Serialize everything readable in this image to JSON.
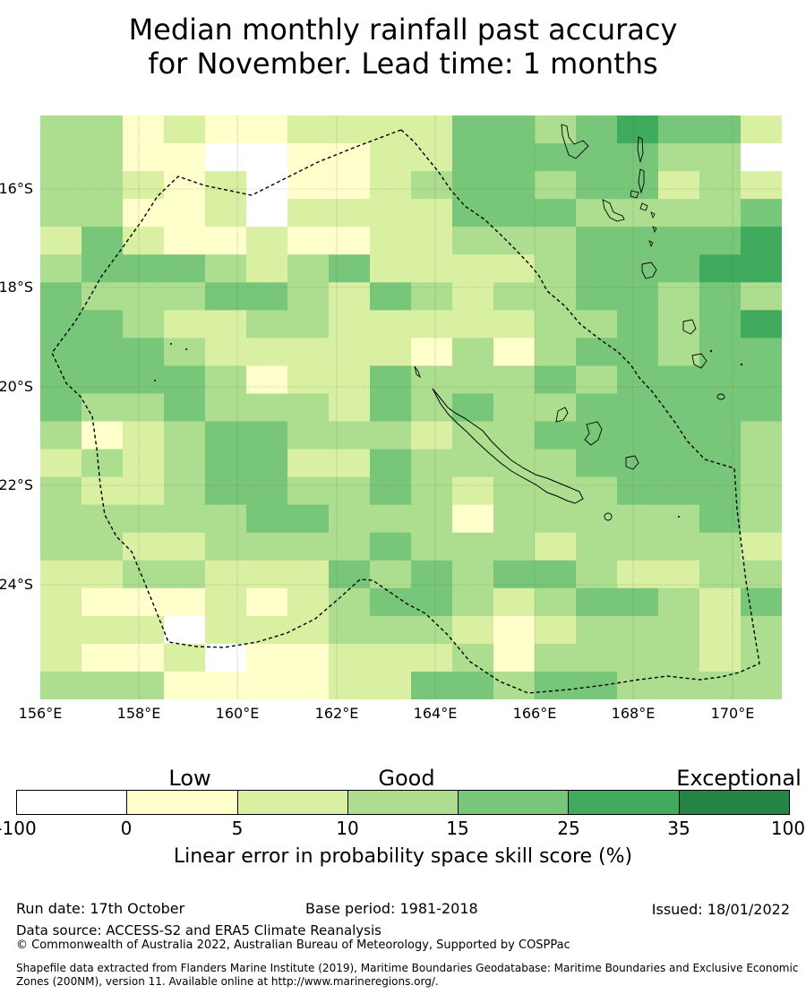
{
  "title": {
    "line1": "Median monthly rainfall past accuracy",
    "line2": "for November. Lead time: 1 months"
  },
  "map": {
    "lat_labels": [
      "16°S",
      "18°S",
      "20°S",
      "22°S",
      "24°S"
    ],
    "lon_labels": [
      "156°E",
      "158°E",
      "160°E",
      "162°E",
      "164°E",
      "166°E",
      "168°E",
      "170°E"
    ],
    "grid_cols": 18,
    "grid_rows": 21,
    "skill_classes": [
      "10-15 10-15 0-5 5-10 0-5 0-5 5-10 5-10 5-10 5-10 15-25 15-25 10-15 15-25 25-35 15-25 15-25 5-10",
      "10-15 10-15 0-5 0-5 -100-0 -100-0 0-5 0-5 5-10 5-10 15-25 15-25 15-25 15-25 15-25 10-15 10-15 -100-0",
      "10-15 10-15 5-10 0-5 5-10 -100-0 0-5 0-5 5-10 10-15 15-25 15-25 10-15 15-25 15-25 5-10 10-15 5-10",
      "10-15 10-15 0-5 0-5 5-10 -100-0 5-10 5-10 5-10 5-10 15-25 15-25 15-25 10-15 10-15 10-15 10-15 15-25",
      "5-10 15-25 5-10 0-5 0-5 5-10 0-5 0-5 5-10 5-10 10-15 10-15 10-15 15-25 15-25 15-25 15-25 25-35",
      "10-15 15-25 15-25 15-25 10-15 5-10 10-15 15-25 5-10 5-10 5-10 5-10 10-15 15-25 15-25 15-25 25-35 25-35",
      "15-25 10-15 10-15 10-15 15-25 15-25 10-15 5-10 15-25 10-15 5-10 10-15 10-15 15-25 15-25 10-15 15-25 10-15",
      "15-25 15-25 10-15 5-10 5-10 10-15 10-15 5-10 5-10 5-10 5-10 5-10 10-15 10-15 15-25 10-15 15-25 25-35",
      "15-25 15-25 15-25 10-15 5-10 5-10 5-10 5-10 5-10 0-5 10-15 0-5 10-15 15-25 15-25 10-15 15-25 15-25",
      "15-25 15-25 15-25 15-25 10-15 0-5 5-10 5-10 15-25 10-15 10-15 10-15 15-25 10-15 15-25 15-25 15-25 15-25",
      "15-25 10-15 10-15 15-25 10-15 10-15 10-15 5-10 15-25 10-15 15-25 10-15 10-15 15-25 15-25 15-25 15-25 15-25",
      "10-15 0-5 5-10 10-15 15-25 15-25 10-15 10-15 10-15 5-10 10-15 10-15 15-25 15-25 15-25 15-25 15-25 10-15",
      "5-10 10-15 5-10 10-15 15-25 15-25 5-10 5-10 15-25 10-15 10-15 10-15 10-15 15-25 15-25 15-25 15-25 10-15",
      "10-15 5-10 5-10 10-15 15-25 15-25 10-15 10-15 15-25 10-15 5-10 10-15 10-15 10-15 15-25 15-25 15-25 10-15",
      "10-15 10-15 10-15 10-15 10-15 15-25 15-25 10-15 10-15 10-15 0-5 10-15 10-15 10-15 10-15 10-15 15-25 10-15",
      "10-15 10-15 5-10 5-10 10-15 10-15 10-15 10-15 15-25 10-15 10-15 10-15 5-10 10-15 10-15 10-15 10-15 5-10",
      "5-10 5-10 10-15 10-15 5-10 5-10 5-10 15-25 10-15 15-25 10-15 15-25 15-25 10-15 5-10 5-10 10-15 10-15",
      "5-10 0-5 0-5 0-5 5-10 0-5 5-10 10-15 15-25 15-25 10-15 5-10 10-15 15-25 15-25 10-15 5-10 15-25",
      "5-10 5-10 5-10 -100-0 5-10 5-10 5-10 10-15 10-15 10-15 5-10 0-5 5-10 10-15 10-15 10-15 5-10 10-15",
      "5-10 0-5 0-5 5-10 -100-0 0-5 0-5 5-10 5-10 5-10 10-15 0-5 10-15 10-15 10-15 10-15 5-10 10-15",
      "10-15 10-15 10-15 0-5 0-5 0-5 0-5 5-10 5-10 15-25 15-25 10-15 15-25 15-25 10-15 10-15 10-15 10-15"
    ]
  },
  "colorbar": {
    "categories": [
      "Low",
      "Good",
      "Exceptional"
    ],
    "ticks": [
      "-100",
      "0",
      "5",
      "10",
      "15",
      "25",
      "35",
      "100"
    ],
    "colors": {
      "-100-0": "#ffffff",
      "0-5": "#ffffcc",
      "5-10": "#d9f0a3",
      "10-15": "#addd8e",
      "15-25": "#78c679",
      "25-35": "#41ab5d",
      "35-100": "#238443"
    },
    "class_order": [
      "-100-0",
      "0-5",
      "5-10",
      "10-15",
      "15-25",
      "25-35",
      "35-100"
    ],
    "axis_label": "Linear error in probability space skill score (%)"
  },
  "footer": {
    "run_date": "Run date: 17th October",
    "base_period": "Base period: 1981-2018",
    "issued": "Issued: 18/01/2022",
    "data_source": "Data source: ACCESS-S2 and ERA5 Climate Reanalysis",
    "copyright": "© Commonwealth of Australia 2022, Australian Bureau of Meteorology, Supported by COSPPac",
    "shapefile_line1": "Shapefile data extracted from Flanders Marine Institute (2019), Maritime Boundaries Geodatabase: Maritime Boundaries and Exclusive Economic",
    "shapefile_line2": "Zones (200NM), version 11. Available online at http://www.marineregions.org/."
  }
}
